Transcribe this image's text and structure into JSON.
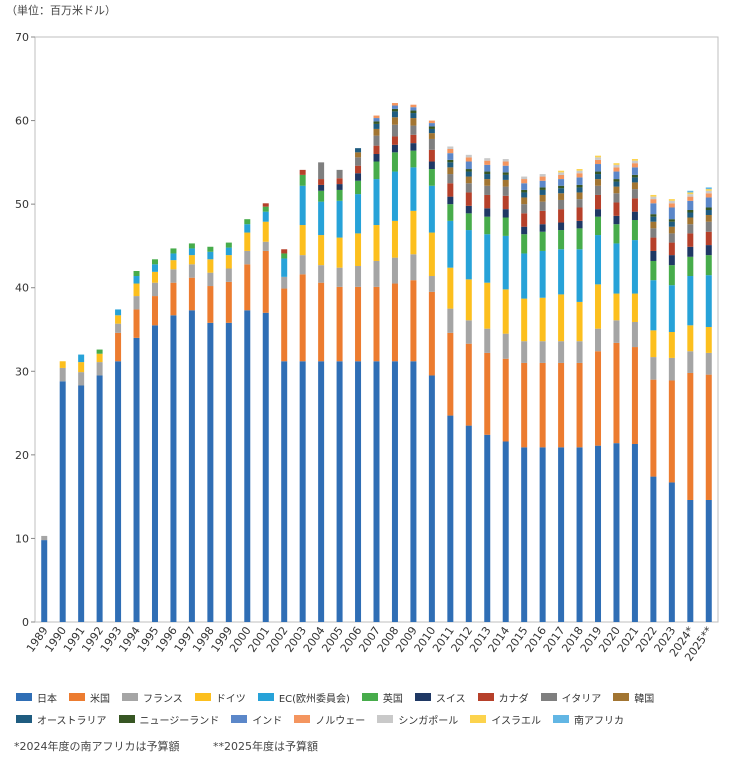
{
  "unit_label": "（単位：百万米ドル）",
  "footnotes": [
    "*2024年度の南アフリカは予算額",
    "**2025年度は予算額"
  ],
  "chart_data": {
    "type": "bar",
    "stacked": true,
    "ylim": [
      0,
      70
    ],
    "yticks": [
      0,
      10,
      20,
      30,
      40,
      50,
      60,
      70
    ],
    "grid": false,
    "legend_position": "bottom",
    "categories": [
      "1989",
      "1990",
      "1991",
      "1992",
      "1993",
      "1994",
      "1995",
      "1996",
      "1997",
      "1998",
      "1999",
      "2000",
      "2001",
      "2002",
      "2003",
      "2004",
      "2005",
      "2006",
      "2007",
      "2008",
      "2009",
      "2010",
      "2011",
      "2012",
      "2013",
      "2014",
      "2015",
      "2016",
      "2017",
      "2018",
      "2019",
      "2020",
      "2021",
      "2022",
      "2023",
      "2024*",
      "2025**"
    ],
    "series": [
      {
        "name": "日本",
        "color": "#2f6eb5",
        "values": [
          9.8,
          28.8,
          28.3,
          29.5,
          31.2,
          34.0,
          35.5,
          36.7,
          37.3,
          35.8,
          35.8,
          37.3,
          37.0,
          31.2,
          31.2,
          31.2,
          31.2,
          31.2,
          31.2,
          31.2,
          31.2,
          29.5,
          24.7,
          23.5,
          22.4,
          21.6,
          20.9,
          20.9,
          20.9,
          20.9,
          21.1,
          21.4,
          21.3,
          17.4,
          16.7,
          14.6,
          14.6
        ]
      },
      {
        "name": "米国",
        "color": "#ec7c30",
        "values": [
          0,
          0,
          0,
          0,
          3.4,
          3.4,
          3.5,
          3.9,
          3.9,
          4.4,
          4.9,
          5.5,
          7.4,
          8.7,
          10.4,
          9.4,
          8.9,
          8.9,
          8.9,
          9.3,
          9.7,
          10.0,
          9.9,
          9.8,
          9.8,
          9.9,
          10.1,
          10.1,
          10.1,
          10.1,
          11.3,
          12.0,
          11.6,
          11.6,
          12.2,
          15.2,
          15.0
        ]
      },
      {
        "name": "フランス",
        "color": "#a5a5a5",
        "values": [
          0.5,
          1.6,
          1.6,
          1.6,
          1.1,
          1.6,
          1.6,
          1.6,
          1.6,
          1.6,
          1.6,
          1.6,
          1.1,
          1.4,
          2.3,
          2.1,
          2.3,
          2.5,
          3.1,
          3.1,
          3.1,
          1.9,
          2.9,
          2.8,
          2.9,
          3.0,
          2.6,
          2.6,
          2.6,
          2.6,
          2.7,
          2.7,
          3.0,
          2.7,
          2.7,
          2.6,
          2.6
        ]
      },
      {
        "name": "ドイツ",
        "color": "#fcbf1e",
        "values": [
          0,
          0.8,
          1.2,
          1.0,
          1.0,
          1.5,
          1.3,
          1.1,
          1.1,
          1.6,
          1.6,
          2.2,
          2.4,
          0,
          3.6,
          3.6,
          3.6,
          3.9,
          4.3,
          4.4,
          5.2,
          5.2,
          4.9,
          4.9,
          5.5,
          5.3,
          5.1,
          5.2,
          5.6,
          4.7,
          5.3,
          3.2,
          3.4,
          3.2,
          3.1,
          3.1,
          3.1
        ]
      },
      {
        "name": "EC(欧州委員会)",
        "color": "#27a2d8",
        "values": [
          0,
          0,
          0.9,
          0,
          0.7,
          0.9,
          0.9,
          0.8,
          0.8,
          0.9,
          0.9,
          1.0,
          1.2,
          2.2,
          4.7,
          4.0,
          4.4,
          4.7,
          5.5,
          5.9,
          5.2,
          5.6,
          5.6,
          5.9,
          5.8,
          6.4,
          5.4,
          5.6,
          5.4,
          6.3,
          5.9,
          6.0,
          6.4,
          6.0,
          5.6,
          5.9,
          6.2
        ]
      },
      {
        "name": "英国",
        "color": "#47ac4b",
        "values": [
          0,
          0,
          0,
          0.5,
          0,
          0.6,
          0.6,
          0.6,
          0.6,
          0.6,
          0.6,
          0.6,
          0.6,
          0.6,
          1.3,
          1.3,
          1.3,
          1.6,
          2.1,
          2.3,
          2.0,
          2.0,
          2.0,
          2.0,
          2.1,
          2.2,
          2.3,
          2.3,
          2.3,
          2.5,
          2.2,
          2.3,
          2.4,
          2.3,
          2.4,
          2.3,
          2.4
        ]
      },
      {
        "name": "スイス",
        "color": "#1f3864",
        "values": [
          0,
          0,
          0,
          0,
          0,
          0,
          0,
          0,
          0,
          0,
          0,
          0,
          0,
          0,
          0,
          0.7,
          0.7,
          0.9,
          0.9,
          0.9,
          0.9,
          0.9,
          0.9,
          0.9,
          1.0,
          1.0,
          0.9,
          0.9,
          0.9,
          0.9,
          0.9,
          1.0,
          1.0,
          1.2,
          1.2,
          1.2,
          1.2
        ]
      },
      {
        "name": "カナダ",
        "color": "#b6402a",
        "values": [
          0,
          0,
          0,
          0,
          0,
          0,
          0,
          0,
          0,
          0,
          0,
          0,
          0.4,
          0.5,
          0.6,
          0.7,
          0.7,
          0.9,
          1.0,
          1.0,
          1.0,
          1.4,
          1.6,
          1.6,
          1.6,
          1.6,
          1.6,
          1.6,
          1.6,
          1.6,
          1.7,
          1.6,
          1.6,
          1.6,
          1.5,
          1.6,
          1.6
        ]
      },
      {
        "name": "イタリア",
        "color": "#7f7f7f",
        "values": [
          0,
          0,
          0,
          0,
          0,
          0,
          0,
          0,
          0,
          0,
          0,
          0,
          0,
          0,
          0,
          2.0,
          1.0,
          1.0,
          1.2,
          1.4,
          1.1,
          1.3,
          1.1,
          1.1,
          1.1,
          1.1,
          1.1,
          1.1,
          1.1,
          1.0,
          1.1,
          1.1,
          1.1,
          1.1,
          1.1,
          1.1,
          1.2
        ]
      },
      {
        "name": "韓国",
        "color": "#a27532",
        "values": [
          0,
          0,
          0,
          0,
          0,
          0,
          0,
          0,
          0,
          0,
          0,
          0,
          0,
          0,
          0,
          0,
          0,
          0.6,
          0.8,
          0.9,
          0.9,
          0.7,
          0.8,
          0.8,
          0.8,
          0.8,
          0.8,
          0.8,
          0.8,
          0.8,
          0.8,
          0.8,
          0.8,
          0.8,
          0.8,
          0.8,
          0.8
        ]
      },
      {
        "name": "オーストラリア",
        "color": "#1f5c80",
        "values": [
          0,
          0,
          0,
          0,
          0,
          0,
          0,
          0,
          0,
          0,
          0,
          0,
          0,
          0,
          0,
          0,
          0,
          0.5,
          0.6,
          0.7,
          0.6,
          0.5,
          0.6,
          0.6,
          0.6,
          0.6,
          0.6,
          0.6,
          0.6,
          0.6,
          0.6,
          0.6,
          0.6,
          0.6,
          0.6,
          0.6,
          0.6
        ]
      },
      {
        "name": "ニュージーランド",
        "color": "#375623",
        "values": [
          0,
          0,
          0,
          0,
          0,
          0,
          0,
          0,
          0,
          0,
          0,
          0,
          0,
          0,
          0,
          0,
          0,
          0,
          0.3,
          0.3,
          0.3,
          0.3,
          0.3,
          0.3,
          0.3,
          0.3,
          0.3,
          0.3,
          0.3,
          0.3,
          0.3,
          0.3,
          0.3,
          0.3,
          0.3,
          0.3,
          0.3
        ]
      },
      {
        "name": "インド",
        "color": "#5b87c9",
        "values": [
          0,
          0,
          0,
          0,
          0,
          0,
          0,
          0,
          0,
          0,
          0,
          0,
          0,
          0,
          0,
          0,
          0,
          0,
          0.4,
          0.4,
          0.4,
          0.4,
          0.8,
          0.9,
          0.8,
          0.8,
          0.8,
          0.8,
          0.8,
          0.9,
          0.9,
          0.9,
          0.9,
          1.3,
          1.4,
          1.1,
          1.2
        ]
      },
      {
        "name": "ノルウェー",
        "color": "#f4955f",
        "values": [
          0,
          0,
          0,
          0,
          0,
          0,
          0,
          0,
          0,
          0,
          0,
          0,
          0,
          0,
          0,
          0,
          0,
          0,
          0.3,
          0.3,
          0.3,
          0.3,
          0.5,
          0.5,
          0.5,
          0.5,
          0.5,
          0.5,
          0.5,
          0.5,
          0.5,
          0.5,
          0.5,
          0.5,
          0.5,
          0.5,
          0.5
        ]
      },
      {
        "name": "シンガポール",
        "color": "#c9c9c9",
        "values": [
          0,
          0,
          0,
          0,
          0,
          0,
          0,
          0,
          0,
          0,
          0,
          0,
          0,
          0,
          0,
          0,
          0,
          0,
          0,
          0,
          0,
          0,
          0.3,
          0.3,
          0.3,
          0.3,
          0.3,
          0.3,
          0.3,
          0.3,
          0.3,
          0.3,
          0.3,
          0.3,
          0.3,
          0.3,
          0.3
        ]
      },
      {
        "name": "イスラエル",
        "color": "#fcd34d",
        "values": [
          0,
          0,
          0,
          0,
          0,
          0,
          0,
          0,
          0,
          0,
          0,
          0,
          0,
          0,
          0,
          0,
          0,
          0,
          0,
          0,
          0,
          0,
          0,
          0,
          0,
          0,
          0,
          0,
          0.2,
          0.2,
          0.2,
          0.2,
          0.2,
          0.2,
          0.2,
          0.2,
          0.2
        ]
      },
      {
        "name": "南アフリカ",
        "color": "#62b6e4",
        "values": [
          0,
          0,
          0,
          0,
          0,
          0,
          0,
          0,
          0,
          0,
          0,
          0,
          0,
          0,
          0,
          0,
          0,
          0,
          0,
          0,
          0,
          0,
          0,
          0,
          0,
          0,
          0,
          0,
          0,
          0,
          0,
          0,
          0,
          0,
          0,
          0.2,
          0.2
        ]
      }
    ]
  }
}
